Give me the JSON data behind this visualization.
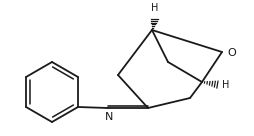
{
  "fig_width": 2.54,
  "fig_height": 1.36,
  "dpi": 100,
  "bg_color": "#ffffff",
  "line_color": "#1a1a1a",
  "line_width": 1.3,
  "font_size": 8,
  "font_size_h": 7,
  "o_label": "O",
  "n_label": "N",
  "h_top_label": "H",
  "h_bot_label": "H",
  "n_dashes": 6
}
